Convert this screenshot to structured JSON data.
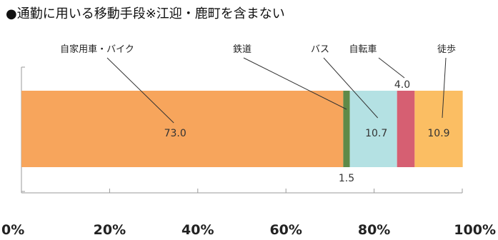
{
  "chart_data": {
    "type": "bar",
    "orientation": "horizontal-stacked-100",
    "title": "●通勤に用いる移動手段※江迎・鹿町を含まない",
    "xlabel": "",
    "ylabel": "",
    "xlim": [
      0,
      100
    ],
    "x_ticks": [
      "0%",
      "20%",
      "40%",
      "60%",
      "80%",
      "100%"
    ],
    "grid": false,
    "legend": "none",
    "categories": [
      "自家用車・バイク",
      "鉄道",
      "バス",
      "自転車",
      "徒歩"
    ],
    "values": [
      73.0,
      1.5,
      10.7,
      4.0,
      10.9
    ],
    "value_labels": [
      "73.0",
      "1.5",
      "10.7",
      "4.0",
      "10.9"
    ],
    "colors": [
      "#F7A55C",
      "#5E8A48",
      "#B4E1E3",
      "#D65F72",
      "#FBBE63"
    ]
  }
}
